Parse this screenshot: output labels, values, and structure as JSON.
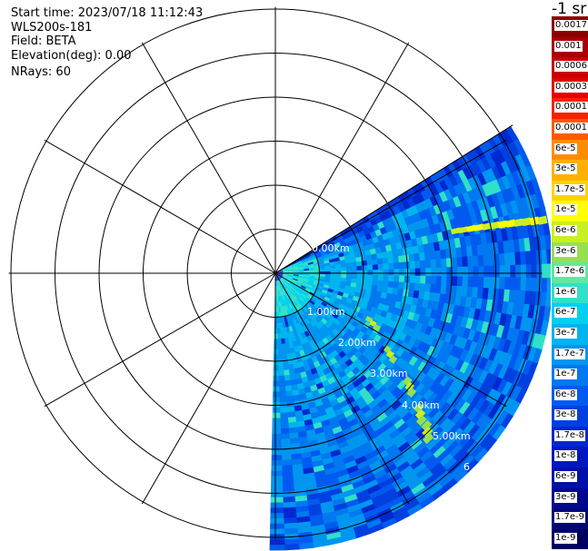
{
  "header": {
    "start_time": "Start time: 2023/07/18 11:12:43",
    "instrument": "WLS200s-181",
    "field": "Field: BETA",
    "elevation": "Elevation(deg): 0.00",
    "nrays": "NRays: 60"
  },
  "colorbar": {
    "title": "-1 sr",
    "labels": [
      "0.0017",
      "0.001",
      "0.0006",
      "0.0003",
      "0.00017",
      "0.0001",
      "6e-5",
      "3e-5",
      "1.7e-5",
      "1e-5",
      "6e-6",
      "3e-6",
      "1.7e-6",
      "1e-6",
      "6e-7",
      "3e-7",
      "1.7e-7",
      "1e-7",
      "6e-8",
      "3e-8",
      "1.7e-8",
      "1e-8",
      "6e-9",
      "3e-9",
      "1.7e-9",
      "1e-9"
    ],
    "colors": [
      "#8b0000",
      "#a80000",
      "#c80000",
      "#e60000",
      "#ff2000",
      "#ff5a00",
      "#ff8c00",
      "#ffb000",
      "#ffd200",
      "#ffff00",
      "#c8f020",
      "#96e050",
      "#60e8a0",
      "#30e0c8",
      "#00d0f0",
      "#00b4f0",
      "#0096f0",
      "#0078f0",
      "#005af0",
      "#0040e0",
      "#0028d0",
      "#0018c0",
      "#0010a8",
      "#000890",
      "#000878",
      "#000060"
    ]
  },
  "chart_data": {
    "type": "ppi-polar",
    "sector_deg": [
      -30,
      180
    ],
    "range_rings_km": [
      1,
      2,
      3,
      4,
      5,
      6
    ],
    "range_labels": [
      "0.00km",
      "1.00km",
      "2.00km",
      "3.00km",
      "4.00km",
      "5.00km",
      "6"
    ],
    "plume": [
      {
        "range_km": 2.3,
        "az_deg": 116
      },
      {
        "range_km": 3.0,
        "az_deg": 124
      },
      {
        "range_km": 3.8,
        "az_deg": 129
      },
      {
        "range_km": 4.4,
        "az_deg": 133
      },
      {
        "range_km": 4.8,
        "az_deg": 135
      }
    ],
    "streak": {
      "range_km": [
        4.1,
        6.2
      ],
      "az_deg": [
        76,
        79
      ]
    }
  }
}
